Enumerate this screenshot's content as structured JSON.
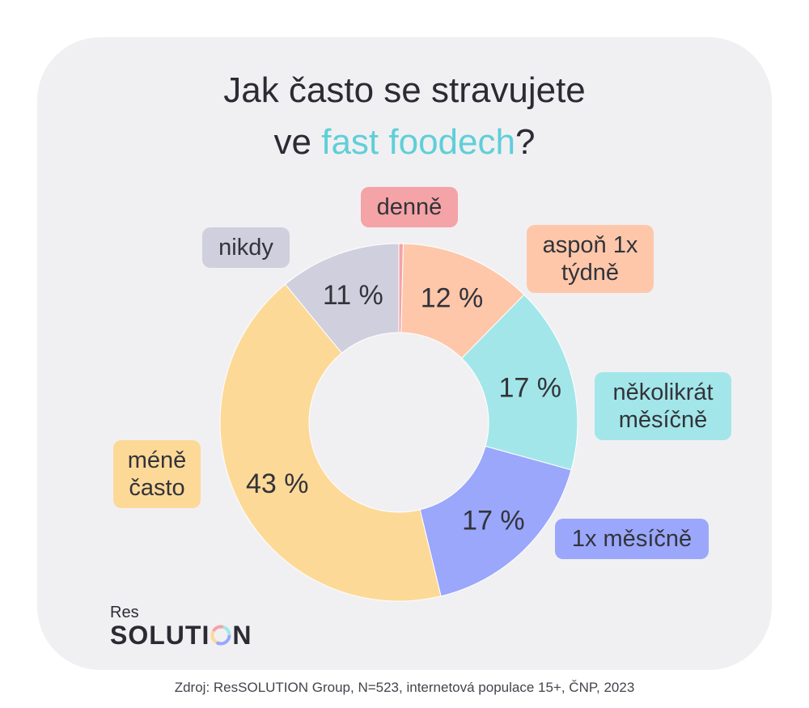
{
  "title": {
    "line1": "Jak často se stravujete",
    "line2_prefix": "ve ",
    "line2_accent": "fast foodech",
    "line2_suffix": "?"
  },
  "colors": {
    "card": "#f0f0f3",
    "accent": "#5fcfd7"
  },
  "chart_data": {
    "type": "pie",
    "variant": "donut",
    "categories": [
      "denně",
      "aspoň 1x týdně",
      "několikrát měsíčně",
      "1x měsíčně",
      "méně často",
      "nikdy"
    ],
    "values": [
      0.4,
      12,
      17,
      17,
      43,
      11
    ],
    "value_labels": [
      "",
      "12 %",
      "17 %",
      "17 %",
      "43 %",
      "11 %"
    ],
    "colors": [
      "#f4a3a6",
      "#fec7aa",
      "#a2e6e9",
      "#9aa7fb",
      "#fdd998",
      "#cfcfde"
    ],
    "label_colors": [
      "#f4a3a6",
      "#fec7aa",
      "#a2e6e9",
      "#9aa7fb",
      "#fdd998",
      "#cfcfde"
    ]
  },
  "logo": {
    "top": "Res",
    "bottom_a": "SOLUTI",
    "bottom_b": "N"
  },
  "source": "Zdroj: ResSOLUTION Group, N=523, internetová populace 15+, ČNP, 2023"
}
